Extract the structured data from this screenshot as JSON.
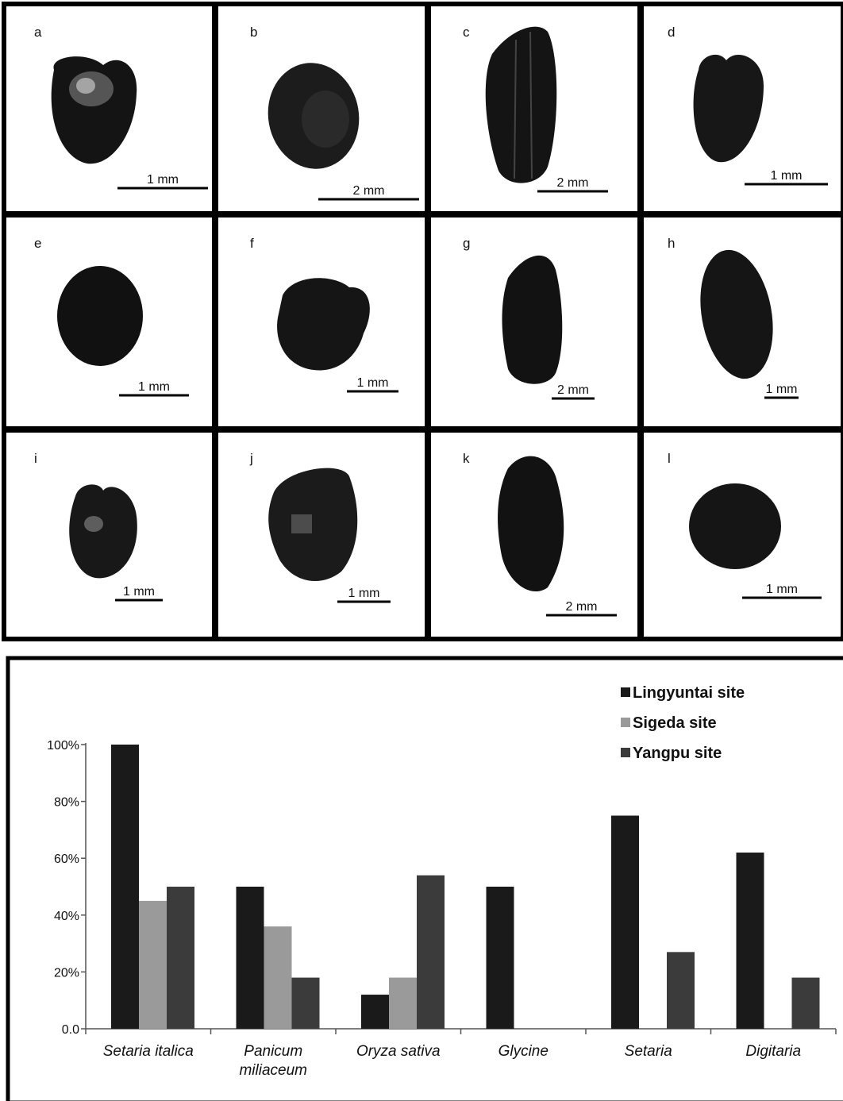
{
  "photo_panels": [
    {
      "letter": "a",
      "scale": "1 mm"
    },
    {
      "letter": "b",
      "scale": "2 mm"
    },
    {
      "letter": "c",
      "scale": "2 mm"
    },
    {
      "letter": "d",
      "scale": "1 mm"
    },
    {
      "letter": "e",
      "scale": "1 mm"
    },
    {
      "letter": "f",
      "scale": "1 mm"
    },
    {
      "letter": "g",
      "scale": "2 mm"
    },
    {
      "letter": "h",
      "scale": "1 mm"
    },
    {
      "letter": "i",
      "scale": "1 mm"
    },
    {
      "letter": "j",
      "scale": "1 mm"
    },
    {
      "letter": "k",
      "scale": "2 mm"
    },
    {
      "letter": "l",
      "scale": "1 mm"
    }
  ],
  "chart_data": {
    "type": "bar",
    "title": "",
    "xlabel": "",
    "ylabel": "",
    "categories": [
      "Setaria italica",
      "Panicum miliaceum",
      "Oryza sativa",
      "Glycine",
      "Setaria",
      "Digitaria"
    ],
    "series": [
      {
        "name": "Lingyuntai site",
        "color": "#1a1a1a",
        "values": [
          100,
          50,
          12,
          50,
          75,
          62
        ]
      },
      {
        "name": "Sigeda site",
        "color": "#9a9a9a",
        "values": [
          45,
          36,
          18,
          0,
          0,
          0
        ]
      },
      {
        "name": "Yangpu site",
        "color": "#3b3b3b",
        "values": [
          50,
          18,
          54,
          0,
          27,
          18
        ]
      }
    ],
    "ylim": [
      0,
      100
    ],
    "yticks": [
      0,
      20,
      40,
      60,
      80,
      100
    ],
    "ytick_labels": [
      "0.0",
      "20%",
      "40%",
      "60%",
      "80%",
      "100%"
    ],
    "legend_position": "top-right",
    "grid": false
  }
}
